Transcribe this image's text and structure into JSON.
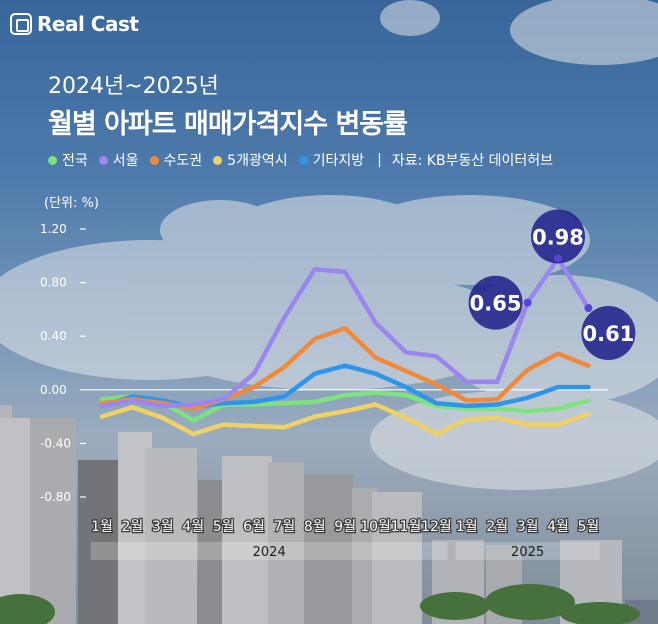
{
  "brand": "Real Cast",
  "title_line1": "2024년~2025년",
  "title_line2": "월별 아파트 매매가격지수 변동률",
  "legend": [
    {
      "label": "전국",
      "color": "#7ee27e"
    },
    {
      "label": "서울",
      "color": "#9b86ee"
    },
    {
      "label": "수도권",
      "color": "#f08a3a"
    },
    {
      "label": "5개광역시",
      "color": "#f0d264"
    },
    {
      "label": "기타지방",
      "color": "#2f95ea"
    }
  ],
  "source": "자료: KB부동산 데이터허브",
  "source_separator": "|",
  "unit": "(단위: %)",
  "chart_data": {
    "type": "line",
    "categories": [
      "1월",
      "2월",
      "3월",
      "4월",
      "5월",
      "6월",
      "7월",
      "8월",
      "9월",
      "10월",
      "11월",
      "12월",
      "1월",
      "2월",
      "3월",
      "4월",
      "5월"
    ],
    "year_groups": [
      {
        "label": "2024",
        "start": 0,
        "end": 11
      },
      {
        "label": "2025",
        "start": 12,
        "end": 16
      }
    ],
    "ylim": [
      -0.8,
      1.2
    ],
    "yticks": [
      {
        "value": 1.2,
        "label": "1.20"
      },
      {
        "value": 0.8,
        "label": "0.80"
      },
      {
        "value": 0.4,
        "label": "0.40"
      },
      {
        "value": 0.0,
        "label": "0.00"
      },
      {
        "value": -0.4,
        "label": "-0.40"
      },
      {
        "value": -0.8,
        "label": "-0.80"
      }
    ],
    "series": [
      {
        "name": "전국",
        "color": "#7ee27e",
        "values": [
          -0.07,
          -0.05,
          -0.09,
          -0.23,
          -0.11,
          -0.11,
          -0.1,
          -0.09,
          -0.04,
          -0.02,
          -0.04,
          -0.12,
          -0.14,
          -0.14,
          -0.16,
          -0.14,
          -0.08
        ]
      },
      {
        "name": "서울",
        "color": "#9b86ee",
        "values": [
          -0.12,
          -0.08,
          -0.12,
          -0.11,
          -0.07,
          0.12,
          0.54,
          0.9,
          0.88,
          0.5,
          0.28,
          0.25,
          0.06,
          0.06,
          0.65,
          0.98,
          0.61
        ]
      },
      {
        "name": "수도권",
        "color": "#f08a3a",
        "values": [
          -0.1,
          -0.07,
          -0.1,
          -0.14,
          -0.07,
          0.02,
          0.17,
          0.38,
          0.46,
          0.24,
          0.14,
          0.04,
          -0.08,
          -0.07,
          0.15,
          0.27,
          0.18
        ]
      },
      {
        "name": "5개광역시",
        "color": "#f0d264",
        "values": [
          -0.2,
          -0.13,
          -0.21,
          -0.33,
          -0.26,
          -0.27,
          -0.28,
          -0.2,
          -0.16,
          -0.11,
          -0.21,
          -0.33,
          -0.22,
          -0.21,
          -0.26,
          -0.26,
          -0.18
        ]
      },
      {
        "name": "기타지방",
        "color": "#2f95ea",
        "values": [
          -0.12,
          -0.05,
          -0.08,
          -0.13,
          -0.1,
          -0.09,
          -0.05,
          0.12,
          0.18,
          0.12,
          0.02,
          -0.1,
          -0.12,
          -0.11,
          -0.06,
          0.02,
          0.02
        ]
      }
    ],
    "annotations": [
      {
        "series": "서울",
        "index": 14,
        "value": 0.65,
        "label": "0.65"
      },
      {
        "series": "서울",
        "index": 15,
        "value": 0.98,
        "label": "0.98"
      },
      {
        "series": "서울",
        "index": 16,
        "value": 0.61,
        "label": "0.61"
      }
    ]
  }
}
